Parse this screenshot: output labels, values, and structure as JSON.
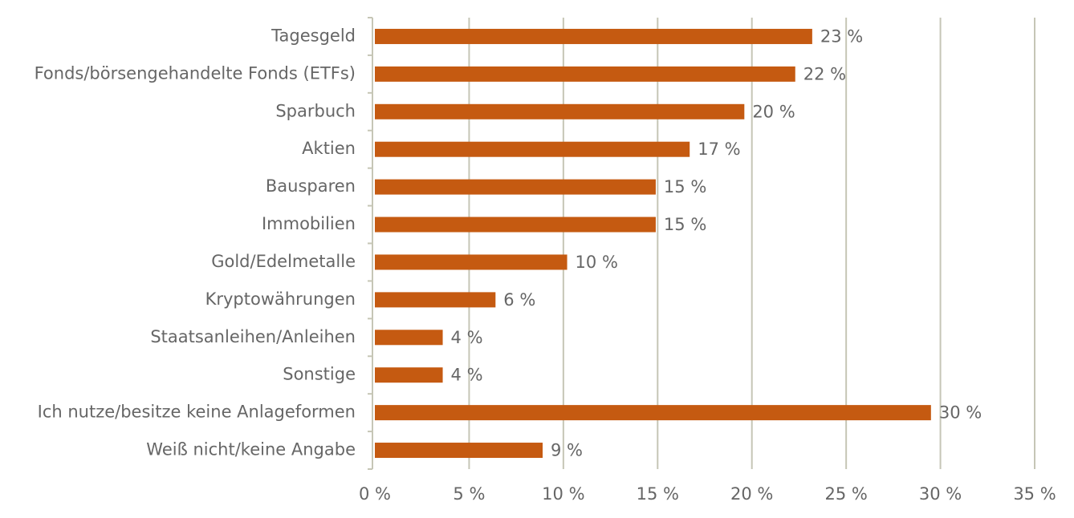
{
  "chart_data": {
    "type": "hbar",
    "categories": [
      "Tagesgeld",
      "Fonds/börsengehandelte Fonds (ETFs)",
      "Sparbuch",
      "Aktien",
      "Bausparen",
      "Immobilien",
      "Gold/Edelmetalle",
      "Kryptowährungen",
      "Staatsanleihen/Anleihen",
      "Sonstige",
      "Ich nutze/besitze keine Anlageformen",
      "Weiß nicht/keine Angabe"
    ],
    "values": [
      23.2,
      22.3,
      19.6,
      16.7,
      14.9,
      14.9,
      10.2,
      6.4,
      3.6,
      3.6,
      29.5,
      8.9
    ],
    "value_labels": [
      "23 %",
      "22 %",
      "20 %",
      "17 %",
      "15 %",
      "15 %",
      "10 %",
      "6 %",
      "4 %",
      "4 %",
      "30 %",
      "9 %"
    ],
    "color": "#c55a11",
    "xlim": [
      0,
      35
    ],
    "xticks": [
      {
        "value": 0,
        "label": "0 %"
      },
      {
        "value": 5,
        "label": "5 %"
      },
      {
        "value": 10,
        "label": "10 %"
      },
      {
        "value": 15,
        "label": "15 %"
      },
      {
        "value": 20,
        "label": "20 %"
      },
      {
        "value": 25,
        "label": "25 %"
      },
      {
        "value": 30,
        "label": "30 %"
      },
      {
        "value": 35,
        "label": "35 %"
      }
    ],
    "grid": true
  }
}
